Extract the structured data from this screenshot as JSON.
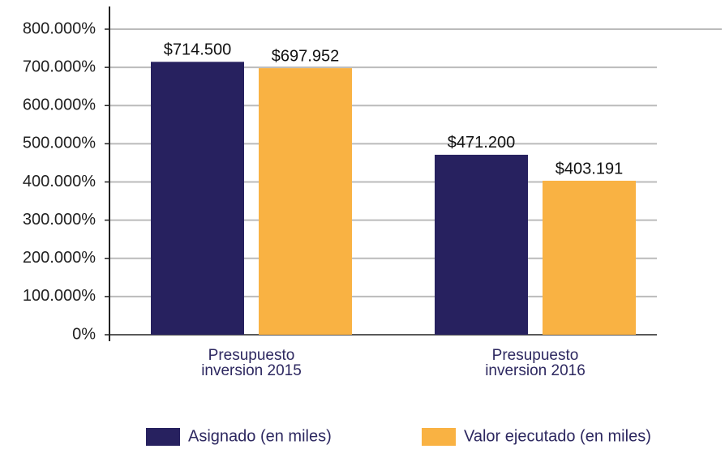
{
  "chart_data": {
    "type": "bar",
    "categories": [
      "Presupuesto inversion 2015",
      "Presupuesto inversion 2016"
    ],
    "series": [
      {
        "name": "Asignado (en miles)",
        "color": "#27215f",
        "values": [
          714500,
          471200
        ],
        "value_labels": [
          "$714.500",
          "$471.200"
        ]
      },
      {
        "name": "Valor ejecutado (en miles)",
        "color": "#f9b243",
        "values": [
          697952,
          403191
        ],
        "value_labels": [
          "$697.952",
          "$403.191"
        ]
      }
    ],
    "ylim": [
      0,
      800000
    ],
    "yticks": [
      {
        "value": 0,
        "label": "0%"
      },
      {
        "value": 100000,
        "label": "100.000%"
      },
      {
        "value": 200000,
        "label": "200.000%"
      },
      {
        "value": 300000,
        "label": "300.000%"
      },
      {
        "value": 400000,
        "label": "400.000%"
      },
      {
        "value": 500000,
        "label": "500.000%"
      },
      {
        "value": 600000,
        "label": "600.000%"
      },
      {
        "value": 700000,
        "label": "700.000%"
      },
      {
        "value": 800000,
        "label": "800.000%"
      }
    ],
    "grid": true,
    "legend": "bottom"
  }
}
